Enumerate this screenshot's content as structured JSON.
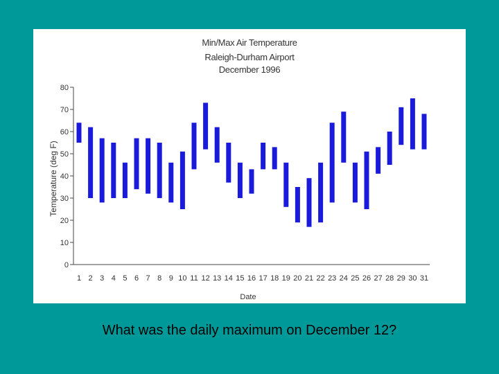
{
  "chart_data": {
    "type": "bar",
    "title": [
      "Min/Max Air Temperature",
      "Raleigh-Durham Airport",
      "December 1996"
    ],
    "xlabel": "Date",
    "ylabel": "Temperature (deg F)",
    "ylim": [
      0,
      80
    ],
    "yticks": [
      0,
      10,
      20,
      30,
      40,
      50,
      60,
      70,
      80
    ],
    "categories": [
      "1",
      "2",
      "3",
      "4",
      "5",
      "6",
      "7",
      "8",
      "9",
      "10",
      "11",
      "12",
      "13",
      "14",
      "15",
      "16",
      "17",
      "18",
      "19",
      "20",
      "21",
      "22",
      "23",
      "24",
      "25",
      "26",
      "27",
      "28",
      "29",
      "30",
      "31"
    ],
    "series": [
      {
        "name": "min",
        "values": [
          55,
          30,
          28,
          30,
          30,
          34,
          32,
          30,
          28,
          25,
          43,
          52,
          46,
          37,
          30,
          32,
          43,
          43,
          26,
          19,
          17,
          19,
          28,
          46,
          28,
          25,
          41,
          45,
          54,
          52,
          52
        ]
      },
      {
        "name": "max",
        "values": [
          64,
          62,
          57,
          55,
          46,
          57,
          57,
          55,
          46,
          51,
          64,
          73,
          62,
          55,
          46,
          43,
          55,
          53,
          46,
          35,
          39,
          46,
          64,
          69,
          46,
          51,
          53,
          60,
          71,
          75,
          68
        ]
      }
    ],
    "bar_color": "#1a1adb",
    "grid": false
  },
  "question": "What was the daily maximum on December 12?"
}
